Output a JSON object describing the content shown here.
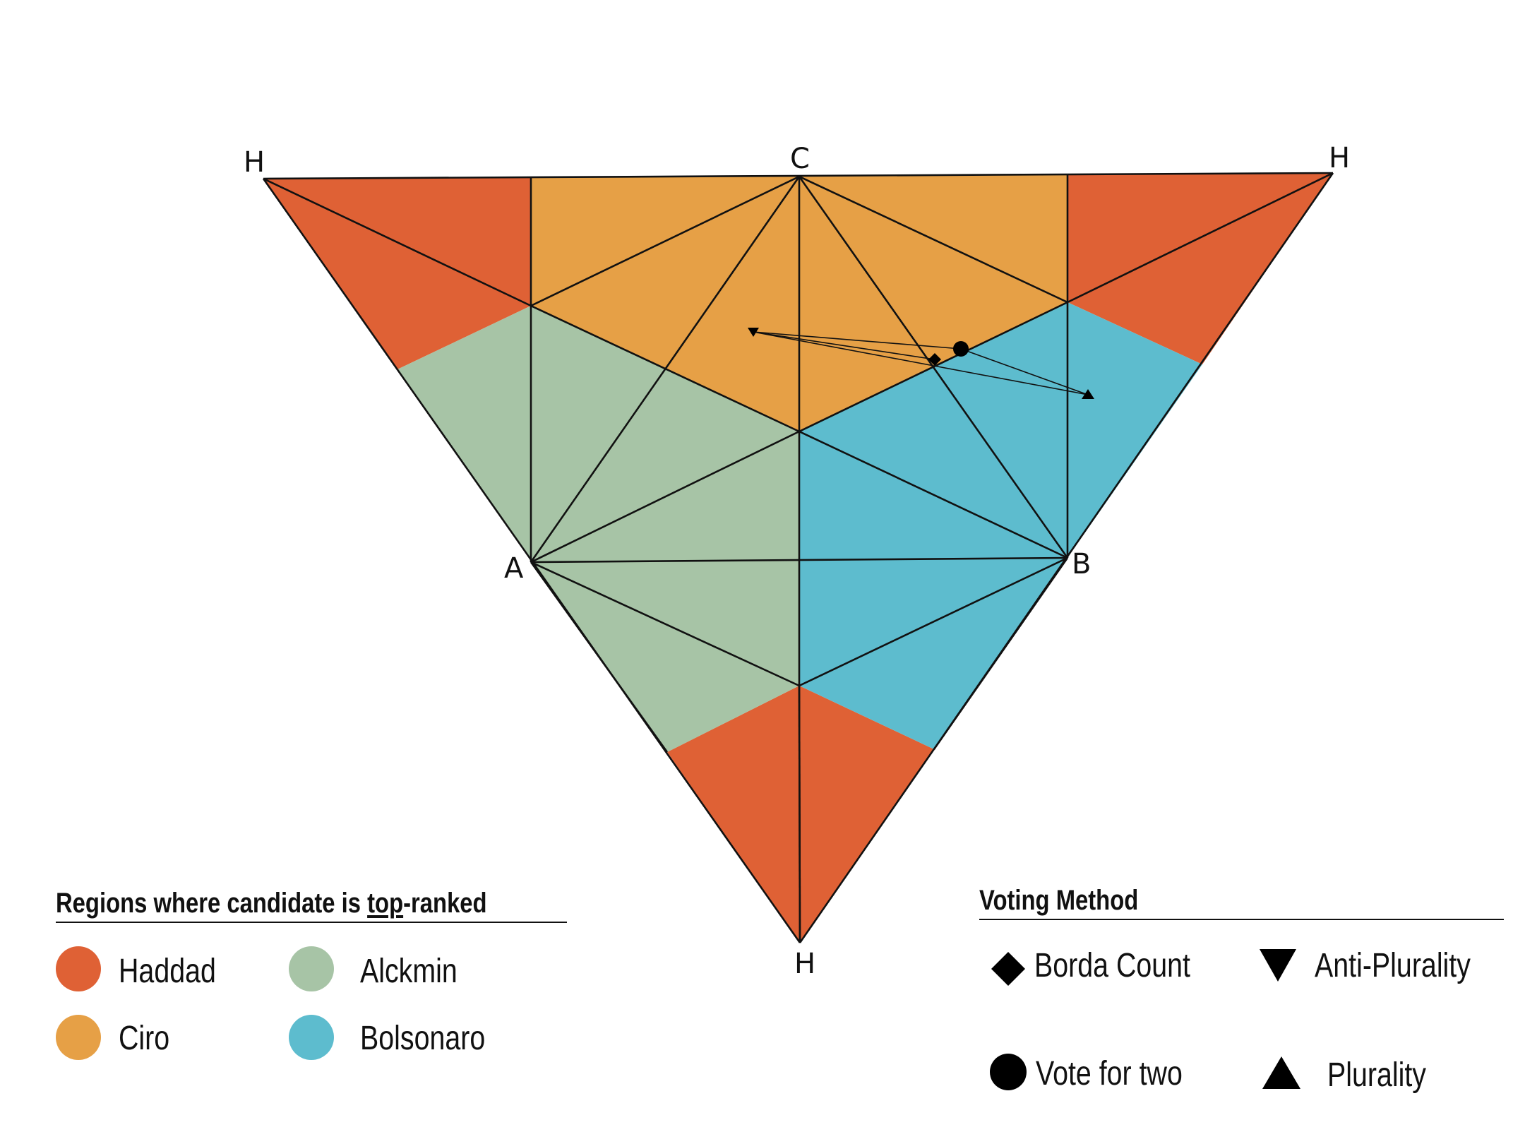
{
  "vertices": {
    "h_left": "H",
    "c_top": "C",
    "h_right": "H",
    "a_left": "A",
    "b_right": "B",
    "h_bottom": "H"
  },
  "colors": {
    "haddad": "#DF6135",
    "ciro": "#E6A046",
    "alckmin": "#A7C4A6",
    "bolsonaro": "#5DBCCE",
    "line": "#111111"
  },
  "regions_legend": {
    "title_pre": "Regions where candidate is ",
    "title_ul": "top",
    "title_post": "-ranked",
    "items": [
      {
        "label": "Haddad",
        "color": "#DF6135"
      },
      {
        "label": "Alckmin",
        "color": "#A7C4A6"
      },
      {
        "label": "Ciro",
        "color": "#E6A046"
      },
      {
        "label": "Bolsonaro",
        "color": "#5DBCCE"
      }
    ]
  },
  "method_legend": {
    "title": "Voting Method",
    "items": [
      {
        "label": "Borda Count",
        "icon": "diamond-icon"
      },
      {
        "label": "Anti-Plurality",
        "icon": "triangle-down-icon"
      },
      {
        "label": "Vote for two",
        "icon": "circle-icon"
      },
      {
        "label": "Plurality",
        "icon": "triangle-up-icon"
      }
    ]
  }
}
